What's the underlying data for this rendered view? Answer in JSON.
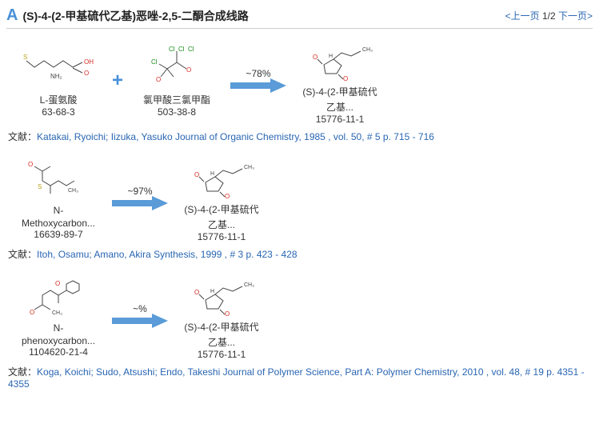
{
  "header": {
    "icon_letter": "A",
    "title": "(S)-4-(2-甲基硫代乙基)恶唑-2,5-二酮合成线路"
  },
  "pager": {
    "prev": "<上一页",
    "position": "1/2",
    "next": "下一页>"
  },
  "colors": {
    "link": "#2966b3",
    "accent": "#4a90d9",
    "arrow_fill": "#5a9bd8",
    "mol_stroke": "#444",
    "chlorine": "#1a8b1a",
    "oxygen": "#d6281f",
    "sulfur": "#b9a21a"
  },
  "citation_label": "文献：",
  "routes": [
    {
      "reagents": [
        {
          "mol": "methionine",
          "name": "L-蛋氨酸",
          "cas": "63-68-3"
        },
        {
          "plus": true
        },
        {
          "mol": "triphosgene",
          "name": "氯甲酸三氯甲酯",
          "cas": "503-38-8"
        },
        {
          "arrow": true,
          "yield": "~78%"
        },
        {
          "mol": "product",
          "name": "(S)-4-(2-甲基硫代",
          "name2": "乙基...",
          "cas": "15776-11-1"
        }
      ],
      "citation": "Katakai, Ryoichi; Iizuka, Yasuko Journal of Organic Chemistry, 1985 , vol. 50, # 5 p. 715 - 716"
    },
    {
      "reagents": [
        {
          "mol": "methoxycarb",
          "name": "N-",
          "name2": "Methoxycarbon...",
          "cas": "16639-89-7"
        },
        {
          "arrow": true,
          "yield": "~97%"
        },
        {
          "mol": "product",
          "name": "(S)-4-(2-甲基硫代",
          "name2": "乙基...",
          "cas": "15776-11-1"
        }
      ],
      "citation": "Itoh, Osamu; Amano, Akira Synthesis, 1999 , # 3 p. 423 - 428"
    },
    {
      "reagents": [
        {
          "mol": "phenoxycarb",
          "name": "N-",
          "name2": "phenoxycarbon...",
          "cas": "1104620-21-4"
        },
        {
          "arrow": true,
          "yield": "~%"
        },
        {
          "mol": "product",
          "name": "(S)-4-(2-甲基硫代",
          "name2": "乙基...",
          "cas": "15776-11-1"
        }
      ],
      "citation": "Koga, Koichi; Sudo, Atsushi; Endo, Takeshi Journal of Polymer Science, Part A: Polymer Chemistry, 2010 , vol. 48, # 19 p. 4351 - 4355"
    }
  ]
}
